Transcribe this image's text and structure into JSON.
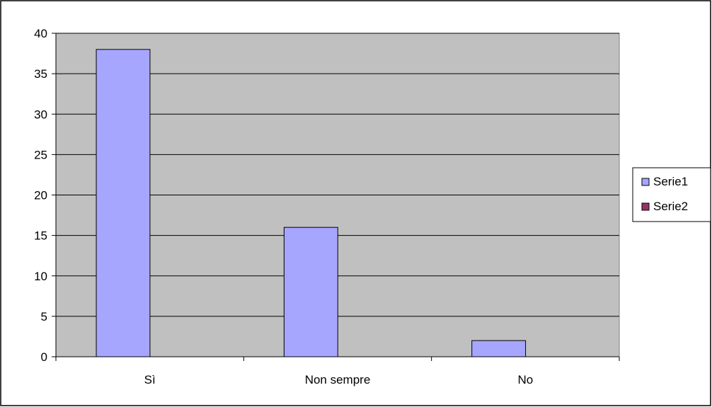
{
  "chart_data": {
    "type": "bar",
    "categories": [
      "Sì",
      "Non sempre",
      "No"
    ],
    "series": [
      {
        "name": "Serie1",
        "values": [
          38,
          16,
          2
        ],
        "color": "#A6A6FF"
      },
      {
        "name": "Serie2",
        "values": [
          0,
          0,
          0
        ],
        "color": "#993366"
      }
    ],
    "title": "",
    "xlabel": "",
    "ylabel": "",
    "ylim": [
      0,
      40
    ],
    "yticks": [
      "0",
      "5",
      "10",
      "15",
      "20",
      "25",
      "30",
      "35",
      "40"
    ],
    "grid": true,
    "legend": "right",
    "plot_background": "#C0C0C0"
  }
}
